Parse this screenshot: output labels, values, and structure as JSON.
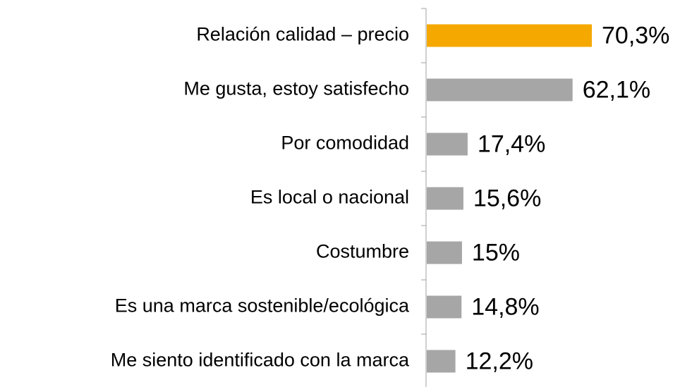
{
  "chart_data": {
    "type": "bar",
    "orientation": "horizontal",
    "categories": [
      "Relación calidad – precio",
      "Me gusta, estoy satisfecho",
      "Por comodidad",
      "Es local o nacional",
      "Costumbre",
      "Es una marca sostenible/ecológica",
      "Me siento identificado con la marca"
    ],
    "values": [
      70.3,
      62.1,
      17.4,
      15.6,
      15,
      14.8,
      12.2
    ],
    "value_labels": [
      "70,3%",
      "62,1%",
      "17,4%",
      "15,6%",
      "15%",
      "14,8%",
      "12,2%"
    ],
    "colors": [
      "#f5a800",
      "#a6a6a6",
      "#a6a6a6",
      "#a6a6a6",
      "#a6a6a6",
      "#a6a6a6",
      "#a6a6a6"
    ]
  }
}
